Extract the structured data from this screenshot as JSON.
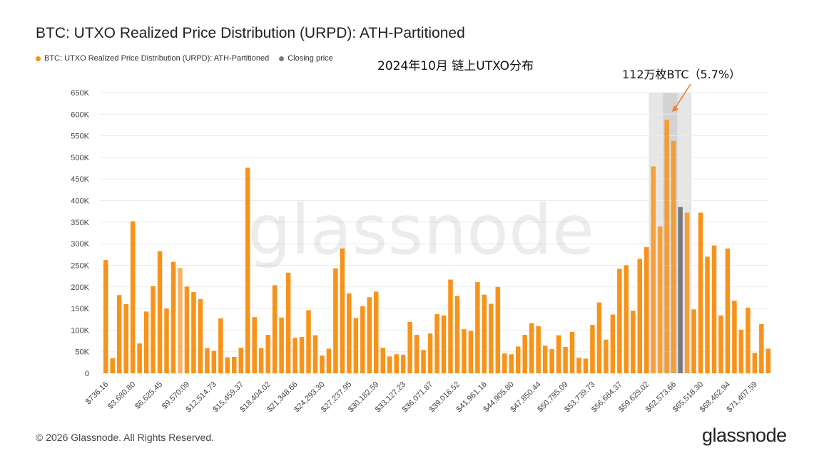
{
  "title": "BTC: UTXO Realized Price Distribution (URPD): ATH-Partitioned",
  "legend": {
    "series_label": "BTC: UTXO Realized Price Distribution (URPD): ATH-Partitioned",
    "closing_label": "Closing price"
  },
  "annotations": {
    "month_label": "2024年10月 链上UTXO分布",
    "cluster_label": "112万枚BTC（5.7%）"
  },
  "watermark": "glassnode",
  "footer": {
    "copyright": "© 2026 Glassnode. All Rights Reserved."
  },
  "brand": "glassnode",
  "colors": {
    "bar": "#f7931a",
    "closing_bar": "#7a7a7a",
    "highlight_bar": "#f5b46a",
    "grid": "#ececec",
    "arrow": "#f07a2c",
    "band_outer": "#e2e2e2",
    "band_inner": "#cfcfcf"
  },
  "chart_data": {
    "type": "bar",
    "ylim": [
      0,
      650000
    ],
    "yticks": [
      0,
      50000,
      100000,
      150000,
      200000,
      250000,
      300000,
      350000,
      400000,
      450000,
      500000,
      550000,
      600000,
      650000
    ],
    "ytick_labels": [
      "0",
      "50K",
      "100K",
      "150K",
      "200K",
      "250K",
      "300K",
      "350K",
      "400K",
      "450K",
      "500K",
      "550K",
      "600K",
      "650K"
    ],
    "x_tick_labels": [
      "$736.16",
      "$3,680.80",
      "$6,625.45",
      "$9,570.09",
      "$12,514.73",
      "$15,459.37",
      "$18,404.02",
      "$21,348.66",
      "$24,293.30",
      "$27,237.95",
      "$30,182.59",
      "$33,127.23",
      "$36,071.87",
      "$39,016.52",
      "$41,961.16",
      "$44,905.80",
      "$47,850.44",
      "$50,795.09",
      "$53,739.73",
      "$56,684.37",
      "$59,629.02",
      "$62,573.66",
      "$65,518.30",
      "$68,462.94",
      "$71,407.59"
    ],
    "x_tick_every": 4,
    "values": [
      262000,
      35000,
      181000,
      160000,
      352000,
      69000,
      143000,
      202000,
      283000,
      150000,
      258000,
      244000,
      201000,
      188000,
      172000,
      58000,
      52000,
      127000,
      37000,
      38000,
      59000,
      476000,
      130000,
      58000,
      89000,
      204000,
      129000,
      233000,
      82000,
      84000,
      146000,
      88000,
      41000,
      57000,
      243000,
      289000,
      185000,
      128000,
      155000,
      176000,
      189000,
      59000,
      39000,
      44000,
      43000,
      119000,
      89000,
      54000,
      92000,
      137000,
      134000,
      217000,
      179000,
      102000,
      98000,
      211000,
      182000,
      161000,
      200000,
      46000,
      44000,
      62000,
      89000,
      116000,
      109000,
      64000,
      56000,
      88000,
      61000,
      96000,
      36000,
      34000,
      112000,
      164000,
      78000,
      136000,
      242000,
      250000,
      145000,
      265000,
      292000,
      479000,
      340000,
      587000,
      538000,
      385000,
      372000,
      148000,
      372000,
      270000,
      296000,
      134000,
      289000,
      168000,
      101000,
      152000,
      47000,
      114000,
      57000
    ],
    "closing_index": 85,
    "highlight_index": 11,
    "cluster_range": [
      81,
      86
    ],
    "cluster_core": [
      83,
      84
    ]
  }
}
